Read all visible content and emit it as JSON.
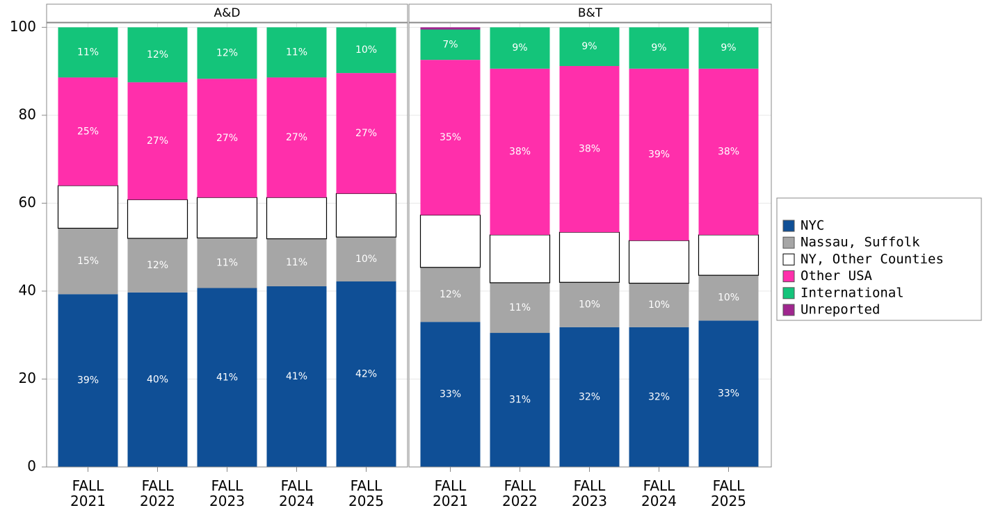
{
  "chart_data": {
    "type": "bar",
    "stacked": true,
    "facets": [
      "A&D",
      "B&T"
    ],
    "categories": [
      "FALL 2021",
      "FALL 2022",
      "FALL 2023",
      "FALL 2024",
      "FALL 2025"
    ],
    "ylim": [
      0,
      101
    ],
    "yticks": [
      0,
      20,
      40,
      60,
      80,
      100
    ],
    "grid": true,
    "legend": "right",
    "series": [
      {
        "name": "NYC",
        "color": "#0f4f96",
        "values": [
          [
            39.3,
            39.7,
            40.7,
            41.1,
            42.2
          ],
          [
            33.0,
            30.5,
            31.8,
            31.8,
            33.3
          ]
        ],
        "value_labels": [
          [
            "39%",
            "40%",
            "41%",
            "41%",
            "42%"
          ],
          [
            "33%",
            "31%",
            "32%",
            "32%",
            "33%"
          ]
        ]
      },
      {
        "name": "Nassau, Suffolk",
        "color": "#a6a6a6",
        "values": [
          [
            15.0,
            12.3,
            11.4,
            10.8,
            10.1
          ],
          [
            12.4,
            11.4,
            10.2,
            10.0,
            10.3
          ]
        ],
        "value_labels": [
          [
            "15%",
            "12%",
            "11%",
            "11%",
            "10%"
          ],
          [
            "12%",
            "11%",
            "10%",
            "10%",
            "10%"
          ]
        ]
      },
      {
        "name": "NY, Other Counties",
        "color": "#ffffff",
        "values": [
          [
            9.7,
            8.8,
            9.2,
            9.4,
            9.9
          ],
          [
            11.9,
            10.9,
            11.4,
            9.7,
            9.2
          ]
        ]
      },
      {
        "name": "Other USA",
        "color": "#ff2fab",
        "values": [
          [
            24.6,
            26.7,
            27.0,
            27.3,
            27.4
          ],
          [
            35.3,
            37.8,
            37.8,
            39.1,
            37.8
          ]
        ],
        "value_labels": [
          [
            "25%",
            "27%",
            "27%",
            "27%",
            "27%"
          ],
          [
            "35%",
            "38%",
            "38%",
            "39%",
            "38%"
          ]
        ]
      },
      {
        "name": "International",
        "color": "#14c47a",
        "values": [
          [
            11.4,
            12.5,
            11.7,
            11.4,
            10.4
          ],
          [
            6.9,
            9.4,
            8.8,
            9.4,
            9.4
          ]
        ],
        "value_labels": [
          [
            "11%",
            "12%",
            "12%",
            "11%",
            "10%"
          ],
          [
            "7%",
            "9%",
            "9%",
            "9%",
            "9%"
          ]
        ]
      },
      {
        "name": "Unreported",
        "color": "#a0268f",
        "values": [
          [
            0,
            0,
            0,
            0,
            0
          ],
          [
            0.5,
            0,
            0,
            0,
            0
          ]
        ]
      }
    ]
  }
}
